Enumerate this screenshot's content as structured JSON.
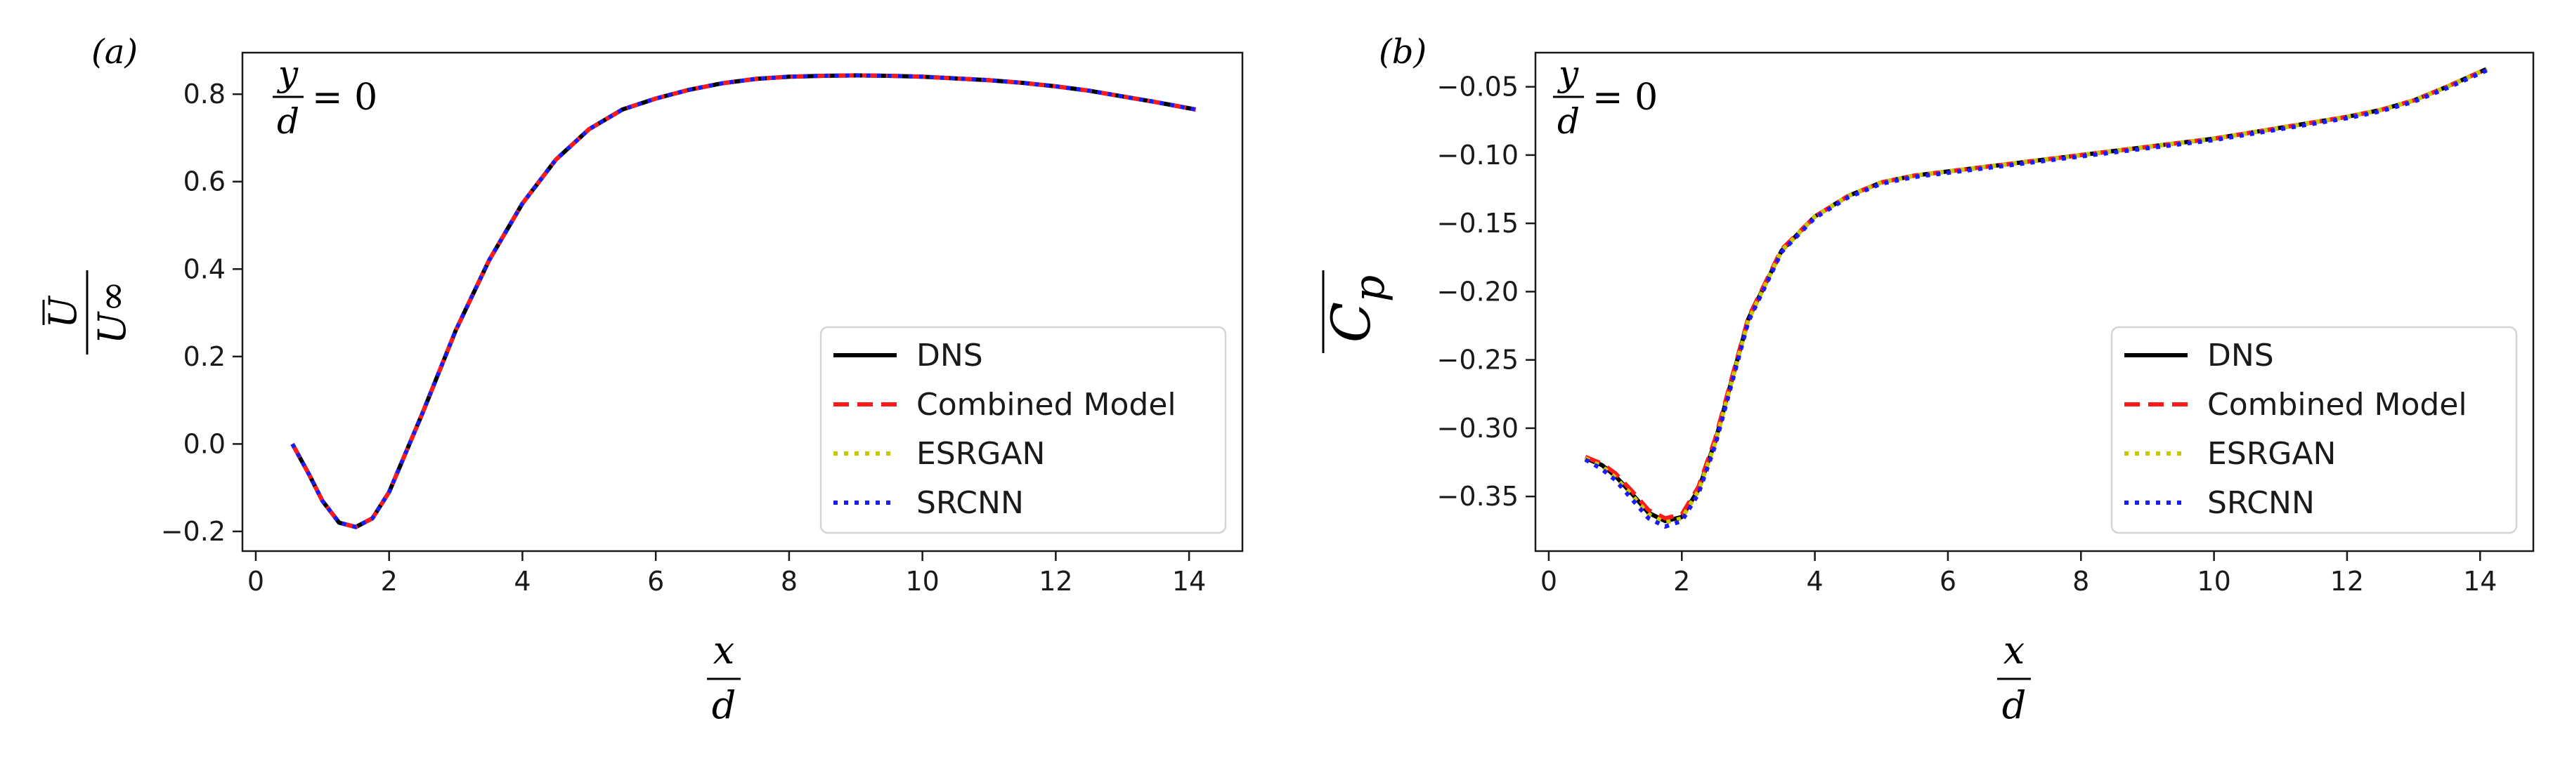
{
  "chart_data": [
    {
      "type": "line",
      "panel_label": "(a)",
      "annotation": {
        "numerator": "y",
        "denominator": "d",
        "equals": "= 0"
      },
      "ylabel": {
        "numerator": "U",
        "denominator": "U∞"
      },
      "xlabel": {
        "numerator": "x",
        "denominator": "d"
      },
      "xlim": [
        -0.2,
        14.8
      ],
      "ylim": [
        -0.245,
        0.895
      ],
      "xticks": [
        0,
        2,
        4,
        6,
        8,
        10,
        12,
        14
      ],
      "xtick_labels": [
        "0",
        "2",
        "4",
        "6",
        "8",
        "10",
        "12",
        "14"
      ],
      "yticks": [
        -0.2,
        0.0,
        0.2,
        0.4,
        0.6,
        0.8
      ],
      "ytick_labels": [
        "−0.2",
        "0.0",
        "0.2",
        "0.4",
        "0.6",
        "0.8"
      ],
      "legend_position": "lower-right",
      "series": [
        {
          "name": "DNS",
          "color": "#000000",
          "style": "solid",
          "x": [
            0.55,
            0.8,
            1.0,
            1.25,
            1.5,
            1.75,
            2.0,
            2.25,
            2.5,
            3.0,
            3.5,
            4.0,
            4.5,
            5.0,
            5.5,
            6.0,
            6.5,
            7.0,
            7.5,
            8.0,
            8.5,
            9.0,
            9.5,
            10.0,
            10.5,
            11.0,
            11.5,
            12.0,
            12.5,
            13.0,
            13.5,
            14.1
          ],
          "values": [
            0.0,
            -0.07,
            -0.13,
            -0.18,
            -0.19,
            -0.17,
            -0.11,
            -0.02,
            0.07,
            0.26,
            0.42,
            0.55,
            0.65,
            0.72,
            0.765,
            0.79,
            0.81,
            0.825,
            0.835,
            0.84,
            0.842,
            0.843,
            0.842,
            0.84,
            0.836,
            0.832,
            0.826,
            0.818,
            0.808,
            0.795,
            0.782,
            0.765
          ]
        },
        {
          "name": "Combined Model",
          "color": "#ff1a1a",
          "style": "dashed",
          "x": [
            0.55,
            0.8,
            1.0,
            1.25,
            1.5,
            1.75,
            2.0,
            2.25,
            2.5,
            3.0,
            3.5,
            4.0,
            4.5,
            5.0,
            5.5,
            6.0,
            6.5,
            7.0,
            7.5,
            8.0,
            8.5,
            9.0,
            9.5,
            10.0,
            10.5,
            11.0,
            11.5,
            12.0,
            12.5,
            13.0,
            13.5,
            14.1
          ],
          "values": [
            0.0,
            -0.07,
            -0.13,
            -0.18,
            -0.19,
            -0.17,
            -0.11,
            -0.02,
            0.07,
            0.26,
            0.42,
            0.55,
            0.65,
            0.72,
            0.765,
            0.79,
            0.81,
            0.825,
            0.835,
            0.84,
            0.842,
            0.843,
            0.842,
            0.84,
            0.836,
            0.832,
            0.826,
            0.818,
            0.808,
            0.795,
            0.782,
            0.765
          ]
        },
        {
          "name": "ESRGAN",
          "color": "#c8c800",
          "style": "dotted",
          "x": [
            0.55,
            0.8,
            1.0,
            1.25,
            1.5,
            1.75,
            2.0,
            2.25,
            2.5,
            3.0,
            3.5,
            4.0,
            4.5,
            5.0,
            5.5,
            6.0,
            6.5,
            7.0,
            7.5,
            8.0,
            8.5,
            9.0,
            9.5,
            10.0,
            10.5,
            11.0,
            11.5,
            12.0,
            12.5,
            13.0,
            13.5,
            14.1
          ],
          "values": [
            0.0,
            -0.07,
            -0.13,
            -0.18,
            -0.19,
            -0.17,
            -0.11,
            -0.02,
            0.07,
            0.26,
            0.42,
            0.55,
            0.65,
            0.72,
            0.765,
            0.79,
            0.81,
            0.825,
            0.835,
            0.84,
            0.842,
            0.843,
            0.842,
            0.84,
            0.836,
            0.832,
            0.826,
            0.818,
            0.808,
            0.795,
            0.782,
            0.765
          ]
        },
        {
          "name": "SRCNN",
          "color": "#1a1aff",
          "style": "dotted",
          "x": [
            0.55,
            0.8,
            1.0,
            1.25,
            1.5,
            1.75,
            2.0,
            2.25,
            2.5,
            3.0,
            3.5,
            4.0,
            4.5,
            5.0,
            5.5,
            6.0,
            6.5,
            7.0,
            7.5,
            8.0,
            8.5,
            9.0,
            9.5,
            10.0,
            10.5,
            11.0,
            11.5,
            12.0,
            12.5,
            13.0,
            13.5,
            14.1
          ],
          "values": [
            0.0,
            -0.07,
            -0.13,
            -0.18,
            -0.19,
            -0.17,
            -0.11,
            -0.02,
            0.07,
            0.26,
            0.42,
            0.55,
            0.65,
            0.72,
            0.765,
            0.79,
            0.81,
            0.825,
            0.835,
            0.84,
            0.842,
            0.843,
            0.842,
            0.84,
            0.836,
            0.832,
            0.826,
            0.818,
            0.808,
            0.795,
            0.782,
            0.765
          ]
        }
      ]
    },
    {
      "type": "line",
      "panel_label": "(b)",
      "annotation": {
        "numerator": "y",
        "denominator": "d",
        "equals": "= 0"
      },
      "ylabel": {
        "text": "C",
        "subscript": "p"
      },
      "xlabel": {
        "numerator": "x",
        "denominator": "d"
      },
      "xlim": [
        -0.2,
        14.8
      ],
      "ylim": [
        -0.39,
        -0.025
      ],
      "xticks": [
        0,
        2,
        4,
        6,
        8,
        10,
        12,
        14
      ],
      "xtick_labels": [
        "0",
        "2",
        "4",
        "6",
        "8",
        "10",
        "12",
        "14"
      ],
      "yticks": [
        -0.35,
        -0.3,
        -0.25,
        -0.2,
        -0.15,
        -0.1,
        -0.05
      ],
      "ytick_labels": [
        "−0.35",
        "−0.30",
        "−0.25",
        "−0.20",
        "−0.15",
        "−0.10",
        "−0.05"
      ],
      "legend_position": "lower-right",
      "series": [
        {
          "name": "DNS",
          "color": "#000000",
          "style": "solid",
          "x": [
            0.55,
            0.8,
            1.0,
            1.25,
            1.5,
            1.75,
            2.0,
            2.25,
            2.5,
            3.0,
            3.5,
            4.0,
            4.5,
            5.0,
            5.5,
            6.0,
            7.0,
            8.0,
            9.0,
            10.0,
            11.0,
            12.0,
            12.5,
            13.0,
            13.5,
            14.1
          ],
          "values": [
            -0.322,
            -0.327,
            -0.335,
            -0.348,
            -0.362,
            -0.368,
            -0.365,
            -0.345,
            -0.31,
            -0.22,
            -0.17,
            -0.145,
            -0.13,
            -0.12,
            -0.115,
            -0.112,
            -0.106,
            -0.1,
            -0.094,
            -0.088,
            -0.08,
            -0.072,
            -0.067,
            -0.06,
            -0.05,
            -0.037
          ]
        },
        {
          "name": "Combined Model",
          "color": "#ff1a1a",
          "style": "dashed",
          "x": [
            0.55,
            0.8,
            1.0,
            1.25,
            1.5,
            1.75,
            2.0,
            2.25,
            2.5,
            3.0,
            3.5,
            4.0,
            4.5,
            5.0,
            5.5,
            6.0,
            7.0,
            8.0,
            9.0,
            10.0,
            11.0,
            12.0,
            12.5,
            13.0,
            13.5,
            14.1
          ],
          "values": [
            -0.321,
            -0.326,
            -0.333,
            -0.346,
            -0.36,
            -0.366,
            -0.363,
            -0.343,
            -0.308,
            -0.219,
            -0.169,
            -0.145,
            -0.13,
            -0.12,
            -0.115,
            -0.112,
            -0.106,
            -0.1,
            -0.094,
            -0.088,
            -0.08,
            -0.072,
            -0.067,
            -0.06,
            -0.05,
            -0.037
          ]
        },
        {
          "name": "ESRGAN",
          "color": "#c8c800",
          "style": "dotted",
          "x": [
            0.55,
            0.8,
            1.0,
            1.25,
            1.5,
            1.75,
            2.0,
            2.25,
            2.5,
            3.0,
            3.5,
            4.0,
            4.5,
            5.0,
            5.5,
            6.0,
            7.0,
            8.0,
            9.0,
            10.0,
            11.0,
            12.0,
            12.5,
            13.0,
            13.5,
            14.1
          ],
          "values": [
            -0.322,
            -0.328,
            -0.336,
            -0.349,
            -0.363,
            -0.369,
            -0.366,
            -0.346,
            -0.311,
            -0.221,
            -0.17,
            -0.145,
            -0.13,
            -0.12,
            -0.115,
            -0.112,
            -0.106,
            -0.1,
            -0.094,
            -0.088,
            -0.08,
            -0.072,
            -0.067,
            -0.06,
            -0.05,
            -0.037
          ]
        },
        {
          "name": "SRCNN",
          "color": "#1a1aff",
          "style": "dotted",
          "x": [
            0.55,
            0.8,
            1.0,
            1.25,
            1.5,
            1.75,
            2.0,
            2.25,
            2.5,
            3.0,
            3.5,
            4.0,
            4.5,
            5.0,
            5.5,
            6.0,
            7.0,
            8.0,
            9.0,
            10.0,
            11.0,
            12.0,
            12.5,
            13.0,
            13.5,
            14.1
          ],
          "values": [
            -0.323,
            -0.33,
            -0.338,
            -0.352,
            -0.366,
            -0.372,
            -0.368,
            -0.348,
            -0.313,
            -0.222,
            -0.171,
            -0.146,
            -0.131,
            -0.121,
            -0.116,
            -0.113,
            -0.107,
            -0.101,
            -0.095,
            -0.089,
            -0.081,
            -0.073,
            -0.068,
            -0.061,
            -0.051,
            -0.038
          ]
        }
      ]
    }
  ]
}
